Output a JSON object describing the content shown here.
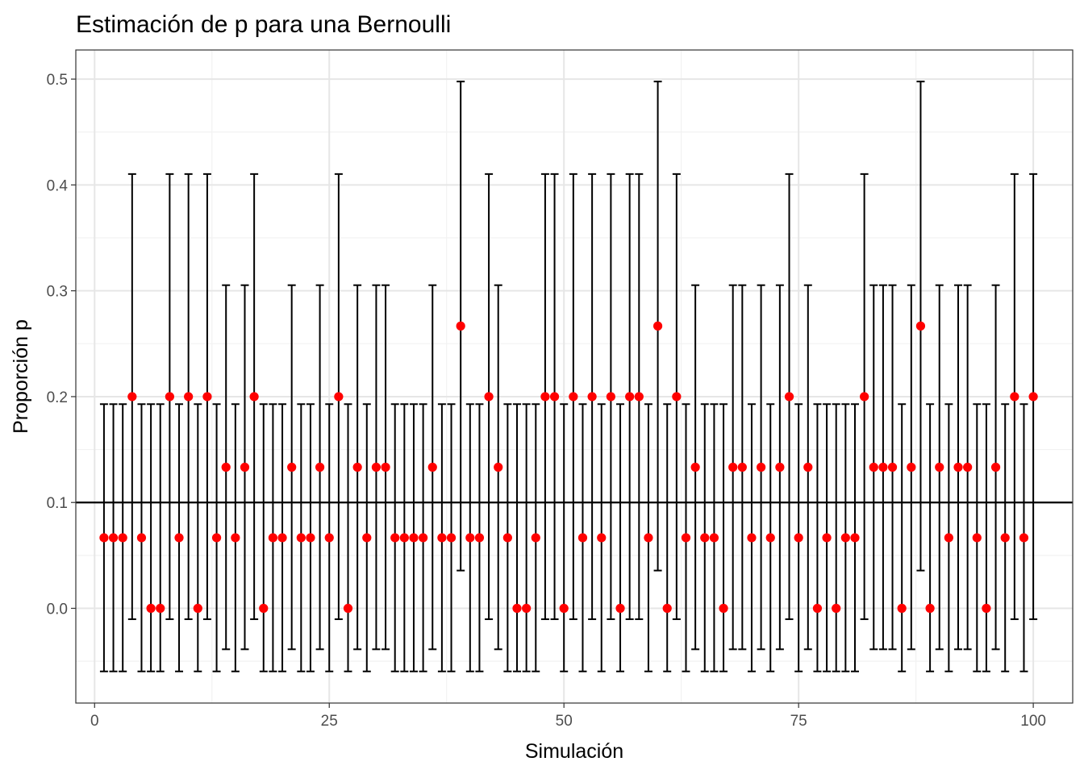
{
  "chart_data": {
    "type": "errorbar-scatter",
    "title": "Estimación de p para una Bernoulli",
    "xlabel": "Simulación",
    "ylabel": "Proporción p",
    "xlim": [
      -2,
      104.2
    ],
    "ylim": [
      -0.0895,
      0.5275
    ],
    "x_ticks": [
      0,
      25,
      50,
      75,
      100
    ],
    "x_tick_labels": [
      "0",
      "25",
      "50",
      "75",
      "100"
    ],
    "y_ticks": [
      0.0,
      0.1,
      0.2,
      0.3,
      0.4,
      0.5
    ],
    "y_tick_labels": [
      "0.0",
      "0.1",
      "0.2",
      "0.3",
      "0.4",
      "0.5"
    ],
    "grid": true,
    "reference_line": 0.1,
    "point_color": "#ff0000",
    "errorbar_color": "#000000",
    "intervals": [
      [
        0.0667,
        -0.0596,
        0.1929
      ],
      [
        0.1333,
        -0.0387,
        0.3053
      ],
      [
        0.2,
        -0.0103,
        0.4103
      ],
      [
        0.2667,
        0.0357,
        0.4977
      ]
    ],
    "x": [
      1,
      2,
      3,
      4,
      5,
      6,
      7,
      8,
      9,
      10,
      11,
      12,
      13,
      14,
      15,
      16,
      17,
      18,
      19,
      20,
      21,
      22,
      23,
      24,
      25,
      26,
      27,
      28,
      29,
      30,
      31,
      32,
      33,
      34,
      35,
      36,
      37,
      38,
      39,
      40,
      41,
      42,
      43,
      44,
      45,
      46,
      47,
      48,
      49,
      50,
      51,
      52,
      53,
      54,
      55,
      56,
      57,
      58,
      59,
      60,
      61,
      62,
      63,
      64,
      65,
      66,
      67,
      68,
      69,
      70,
      71,
      72,
      73,
      74,
      75,
      76,
      77,
      78,
      79,
      80,
      81,
      82,
      83,
      84,
      85,
      86,
      87,
      88,
      89,
      90,
      91,
      92,
      93,
      94,
      95,
      96,
      97,
      98,
      99,
      100
    ],
    "p_hat": [
      0.0667,
      0.0667,
      0.0667,
      0.2,
      0.0667,
      0,
      0,
      0.2,
      0.0667,
      0.2,
      0,
      0.2,
      0.0667,
      0.1333,
      0.0667,
      0.1333,
      0.2,
      0,
      0.0667,
      0.0667,
      0.1333,
      0.0667,
      0.0667,
      0.1333,
      0.0667,
      0.2,
      0,
      0.1333,
      0.0667,
      0.1333,
      0.1333,
      0.0667,
      0.0667,
      0.0667,
      0.0667,
      0.1333,
      0.0667,
      0.0667,
      0.2667,
      0.0667,
      0.0667,
      0.2,
      0.1333,
      0.0667,
      0,
      0,
      0.0667,
      0.2,
      0.2,
      0,
      0.2,
      0.0667,
      0.2,
      0.0667,
      0.2,
      0,
      0.2,
      0.2,
      0.0667,
      0.2667,
      0,
      0.2,
      0.0667,
      0.1333,
      0.0667,
      0.0667,
      0,
      0.1333,
      0.1333,
      0.0667,
      0.1333,
      0.0667,
      0.1333,
      0.2,
      0.0667,
      0.1333,
      0,
      0.0667,
      0,
      0.0667,
      0.0667,
      0.2,
      0.1333,
      0.1333,
      0.1333,
      0,
      0.1333,
      0.2667,
      0,
      0.1333,
      0.0667,
      0.1333,
      0.1333,
      0.0667,
      0,
      0.1333,
      0.0667,
      0.2,
      0.0667,
      0.2
    ]
  }
}
